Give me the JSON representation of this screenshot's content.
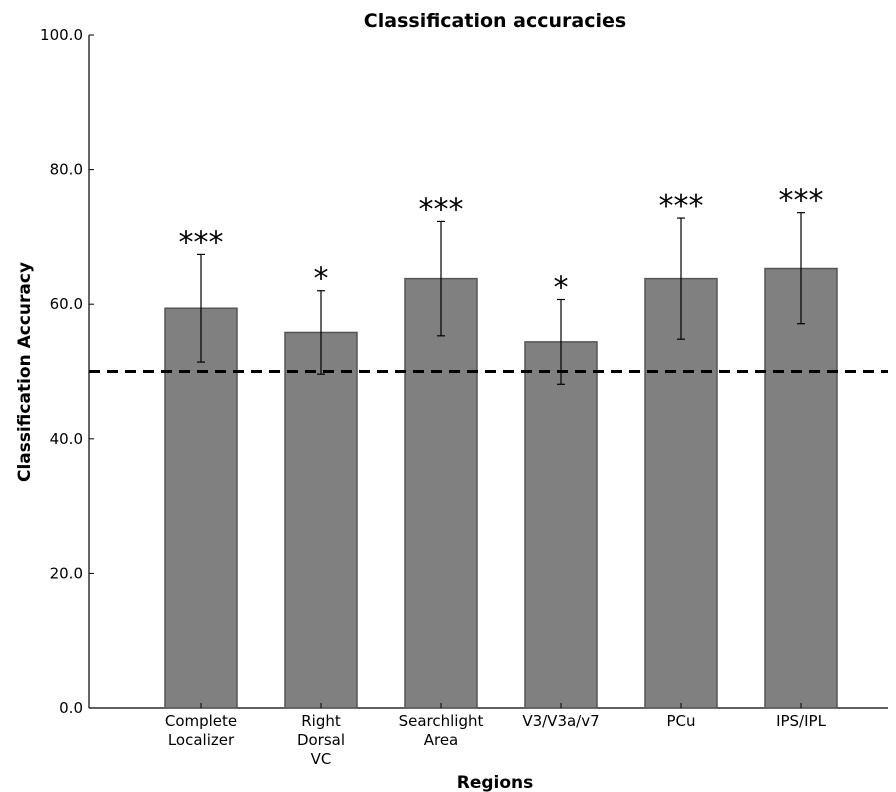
{
  "chart_data": {
    "type": "bar",
    "title": "Classification accuracies",
    "xlabel": "Regions",
    "ylabel": "Classification Accuracy",
    "categories": [
      [
        "Complete",
        "Localizer"
      ],
      [
        "Right",
        "Dorsal",
        "VC"
      ],
      [
        "Searchlight",
        "Area"
      ],
      [
        "V3/V3a/v7"
      ],
      [
        "PCu"
      ],
      [
        "IPS/IPL"
      ]
    ],
    "values": [
      59.4,
      55.8,
      63.8,
      54.4,
      63.8,
      65.3
    ],
    "error": [
      [
        51.4,
        67.4
      ],
      [
        49.6,
        62.0
      ],
      [
        55.3,
        72.3
      ],
      [
        48.1,
        60.7
      ],
      [
        54.8,
        72.8
      ],
      [
        57.1,
        73.6
      ]
    ],
    "significance": [
      "***",
      "*",
      "***",
      "*",
      "***",
      "***"
    ],
    "ylim": [
      0,
      100
    ],
    "yticks": [
      "0.0",
      "20.0",
      "40.0",
      "60.0",
      "80.0",
      "100.0"
    ],
    "ytick_values": [
      0,
      20,
      40,
      60,
      80,
      100
    ],
    "chance_level": 50,
    "grid": false,
    "bar_color": "#808080",
    "bar_edge_color": "#555555"
  }
}
